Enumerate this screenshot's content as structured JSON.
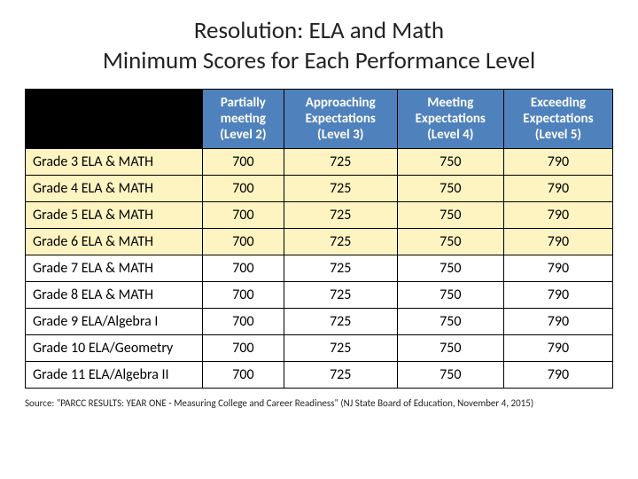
{
  "title_line1": "Resolution:  ELA and Math",
  "title_line2": "Minimum Scores for Each Performance Level",
  "columns": [
    "Partially meeting (Level 2)",
    "Approaching Expectations (Level 3)",
    "Meeting Expectations (Level 4)",
    "Exceeding Expectations (Level 5)"
  ],
  "rows": [
    {
      "label": "Grade 3 ELA & MATH",
      "v": [
        "700",
        "725",
        "750",
        "790"
      ],
      "hl": true
    },
    {
      "label": "Grade 4 ELA & MATH",
      "v": [
        "700",
        "725",
        "750",
        "790"
      ],
      "hl": true
    },
    {
      "label": "Grade 5 ELA & MATH",
      "v": [
        "700",
        "725",
        "750",
        "790"
      ],
      "hl": true
    },
    {
      "label": "Grade 6 ELA & MATH",
      "v": [
        "700",
        "725",
        "750",
        "790"
      ],
      "hl": true
    },
    {
      "label": "Grade 7 ELA & MATH",
      "v": [
        "700",
        "725",
        "750",
        "790"
      ],
      "hl": false
    },
    {
      "label": "Grade 8 ELA & MATH",
      "v": [
        "700",
        "725",
        "750",
        "790"
      ],
      "hl": false
    },
    {
      "label": "Grade 9 ELA/Algebra I",
      "v": [
        "700",
        "725",
        "750",
        "790"
      ],
      "hl": false
    },
    {
      "label": "Grade 10 ELA/Geometry",
      "v": [
        "700",
        "725",
        "750",
        "790"
      ],
      "hl": false
    },
    {
      "label": "Grade 11 ELA/Algebra II",
      "v": [
        "700",
        "725",
        "750",
        "790"
      ],
      "hl": false
    }
  ],
  "source": "Source: \"PARCC RESULTS: YEAR ONE - Measuring College and Career Readiness\" (NJ State Board of Education, November 4, 2015)",
  "colors": {
    "header_bg": "#4f81bd",
    "highlight_bg": "#fdf4c1",
    "corner_bg": "#000000",
    "text": "#222222"
  },
  "typography": {
    "title_fontsize": 27,
    "body_fontsize": 16,
    "header_fontsize": 15,
    "source_fontsize": 11
  }
}
